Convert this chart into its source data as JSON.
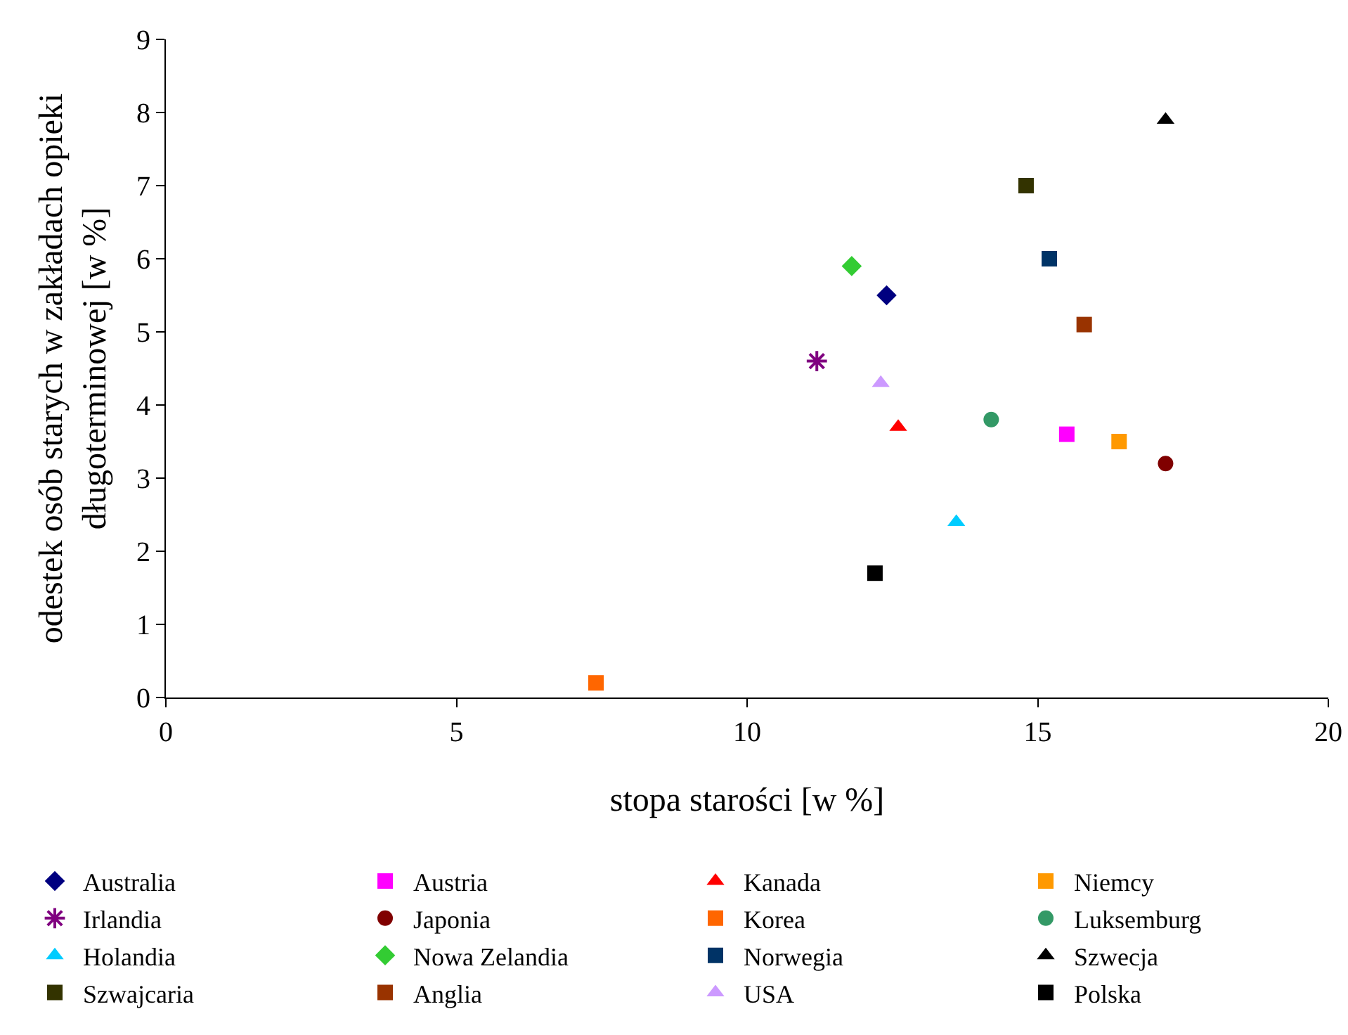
{
  "chart_data": {
    "type": "scatter",
    "xlabel": "stopa starości [w %]",
    "ylabel": "odestek osób starych w zakładach opieki\ndługoterminowej [w %]",
    "xlim": [
      0,
      20
    ],
    "xticks": [
      0,
      5,
      10,
      15,
      20
    ],
    "ylim": [
      0,
      9
    ],
    "yticks": [
      0,
      1,
      2,
      3,
      4,
      5,
      6,
      7,
      8,
      9
    ],
    "grid": false,
    "legend": "bottom",
    "series": [
      {
        "name": "Australia",
        "color": "#000080",
        "marker": "diamond",
        "x": [
          12.4
        ],
        "values": [
          5.5
        ]
      },
      {
        "name": "Austria",
        "color": "#ff00ff",
        "marker": "square",
        "x": [
          15.5
        ],
        "values": [
          3.6
        ]
      },
      {
        "name": "Kanada",
        "color": "#ff0000",
        "marker": "triangle",
        "x": [
          12.6
        ],
        "values": [
          3.7
        ]
      },
      {
        "name": "Niemcy",
        "color": "#ff9900",
        "marker": "square",
        "x": [
          16.4
        ],
        "values": [
          3.5
        ]
      },
      {
        "name": "Irlandia",
        "color": "#800080",
        "marker": "cross",
        "x": [
          11.2
        ],
        "values": [
          4.6
        ]
      },
      {
        "name": "Japonia",
        "color": "#800000",
        "marker": "circle",
        "x": [
          17.2
        ],
        "values": [
          3.2
        ]
      },
      {
        "name": "Korea",
        "color": "#ff6600",
        "marker": "square",
        "x": [
          7.4
        ],
        "values": [
          0.2
        ]
      },
      {
        "name": "Luksemburg",
        "color": "#339966",
        "marker": "circle",
        "x": [
          14.2
        ],
        "values": [
          3.8
        ]
      },
      {
        "name": "Holandia",
        "color": "#00ccff",
        "marker": "triangle",
        "x": [
          13.6
        ],
        "values": [
          2.4
        ]
      },
      {
        "name": "Nowa Zelandia",
        "color": "#33cc33",
        "marker": "diamond",
        "x": [
          11.8
        ],
        "values": [
          5.9
        ]
      },
      {
        "name": "Norwegia",
        "color": "#003366",
        "marker": "square",
        "x": [
          15.2
        ],
        "values": [
          6.0
        ]
      },
      {
        "name": "Szwecja",
        "color": "#000000",
        "marker": "triangle",
        "x": [
          17.2
        ],
        "values": [
          7.9
        ]
      },
      {
        "name": "Szwajcaria",
        "color": "#333300",
        "marker": "square",
        "x": [
          14.8
        ],
        "values": [
          7.0
        ]
      },
      {
        "name": "Anglia",
        "color": "#993300",
        "marker": "square",
        "x": [
          15.8
        ],
        "values": [
          5.1
        ]
      },
      {
        "name": "USA",
        "color": "#cc99ff",
        "marker": "triangle",
        "x": [
          12.3
        ],
        "values": [
          4.3
        ]
      },
      {
        "name": "Polska",
        "color": "#000000",
        "marker": "square",
        "x": [
          12.2
        ],
        "values": [
          1.7
        ]
      }
    ]
  }
}
